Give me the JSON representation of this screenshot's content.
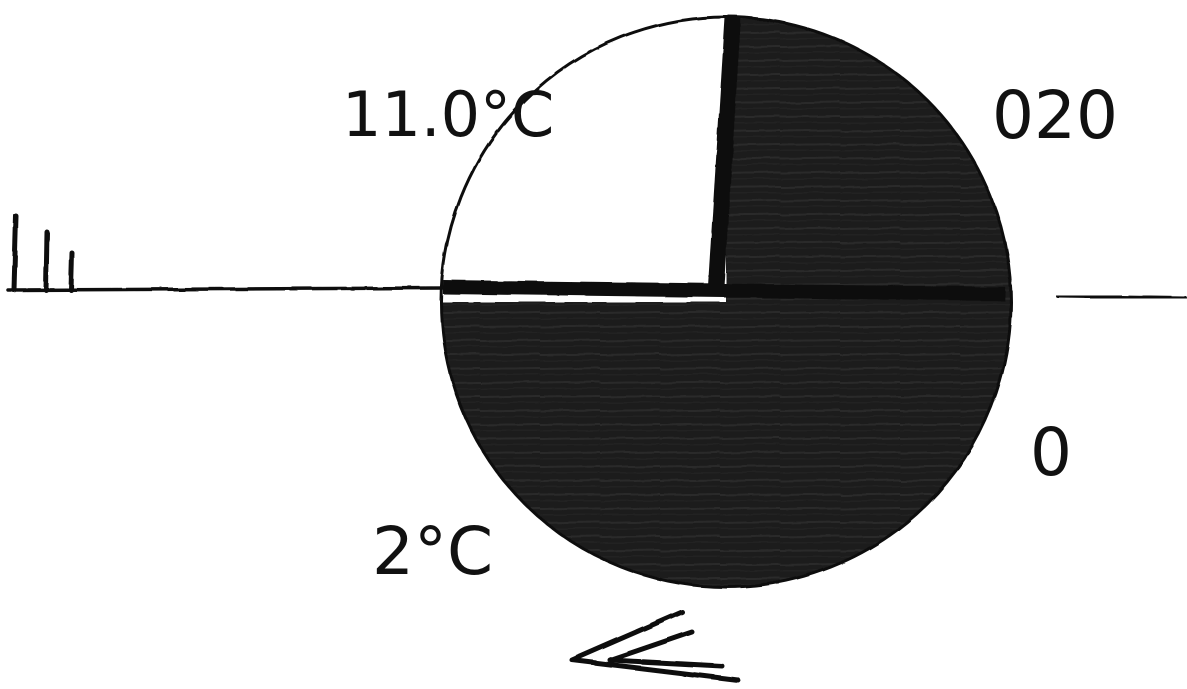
{
  "station_model": {
    "temperature": "11.0°C",
    "dew_point": "2°C",
    "pressure": "020",
    "pressure_tendency": "0",
    "cloud_cover_fraction": 0.75,
    "wind_barb_full_barbs": 2,
    "wind_barb_half_barbs": 1,
    "ink_color": "#111111",
    "paper_color": "#ffffff"
  }
}
